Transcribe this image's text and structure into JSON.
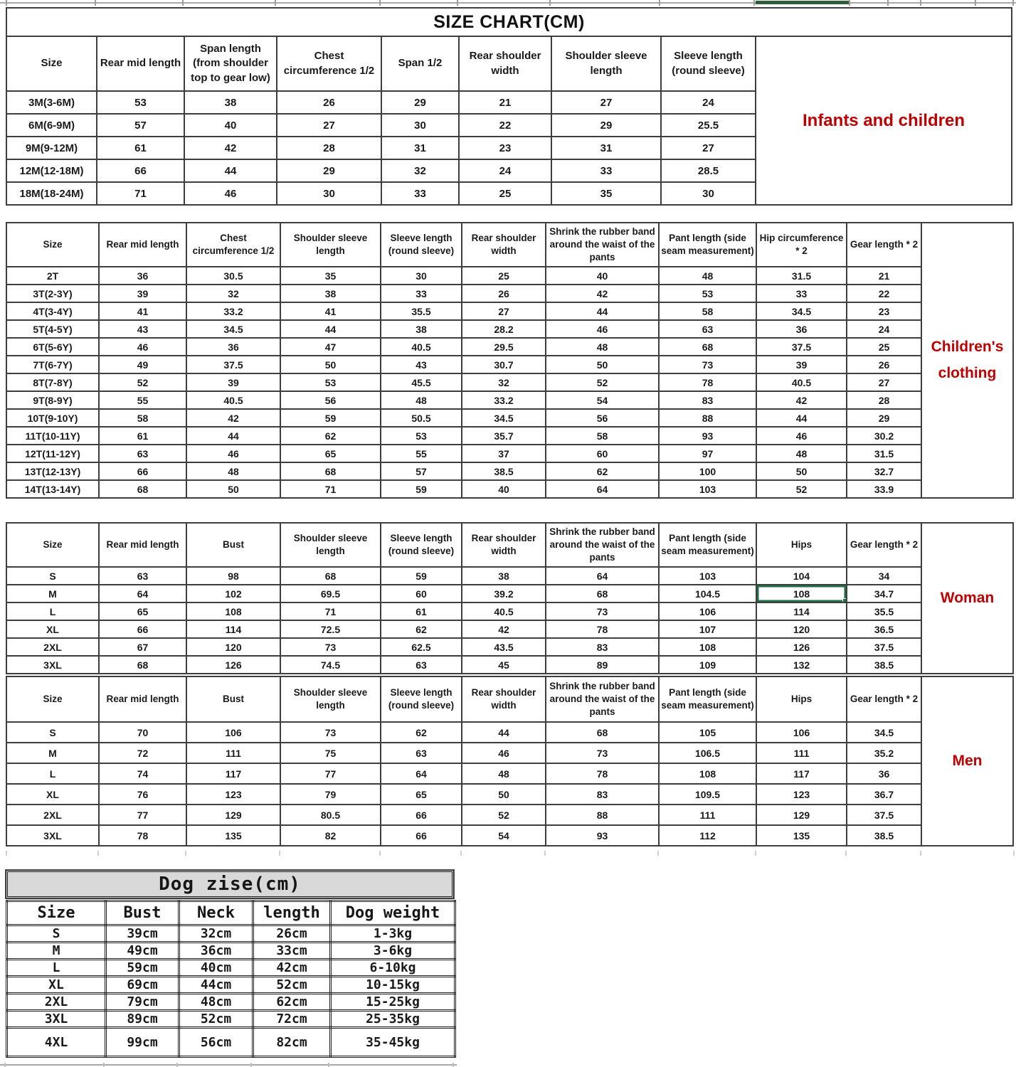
{
  "sheet_title": "SIZE CHART(CM)",
  "colors": {
    "red_label": "#c00000",
    "blue_row": "#1f6cb5",
    "navy_row": "#1f3864",
    "red_row": "#c00000",
    "selection_green": "#1e7145",
    "strip_green": "#2d5e38",
    "dog_header_bg": "#d9d9d9"
  },
  "tables": {
    "infants": {
      "side_label": "Infants and children",
      "headers": [
        "Size",
        "Rear mid length",
        "Span length (from shoulder top to gear low)",
        "Chest circumference 1/2",
        "Span 1/2",
        "Rear shoulder width",
        "Shoulder sleeve length",
        "Sleeve length (round sleeve)"
      ],
      "rows": [
        {
          "size": "3M(3-6M)",
          "values": [
            "53",
            "38",
            "26",
            "29",
            "21",
            "27",
            "24"
          ],
          "color": "black"
        },
        {
          "size": "6M(6-9M)",
          "values": [
            "57",
            "40",
            "27",
            "30",
            "22",
            "29",
            "25.5"
          ],
          "color": "black"
        },
        {
          "size": "9M(9-12M)",
          "values": [
            "61",
            "42",
            "28",
            "31",
            "23",
            "31",
            "27"
          ],
          "color": "black"
        },
        {
          "size": "12M(12-18M)",
          "values": [
            "66",
            "44",
            "29",
            "32",
            "24",
            "33",
            "28.5"
          ],
          "color": "black"
        },
        {
          "size": "18M(18-24M)",
          "values": [
            "71",
            "46",
            "30",
            "33",
            "25",
            "35",
            "30"
          ],
          "color": "black"
        }
      ]
    },
    "children": {
      "side_label_line1": "Children's",
      "side_label_line2": "clothing",
      "headers": [
        "Size",
        "Rear mid length",
        "Chest circumference 1/2",
        "Shoulder sleeve length",
        "Sleeve length (round sleeve)",
        "Rear shoulder width",
        "Shrink the rubber band around the waist of the pants",
        "Pant length (side seam measurement)",
        "Hip circumference * 2",
        "Gear length * 2"
      ],
      "dark_value_cols": [
        4,
        7
      ],
      "rows": [
        {
          "size": "2T",
          "values": [
            "36",
            "30.5",
            "35",
            "30",
            "25",
            "40",
            "48",
            "31.5",
            "21"
          ],
          "color": "black"
        },
        {
          "size": "3T(2-3Y)",
          "values": [
            "39",
            "32",
            "38",
            "33",
            "26",
            "42",
            "53",
            "33",
            "22"
          ],
          "color": "blue"
        },
        {
          "size": "4T(3-4Y)",
          "values": [
            "41",
            "33.2",
            "41",
            "35.5",
            "27",
            "44",
            "58",
            "34.5",
            "23"
          ],
          "color": "blue"
        },
        {
          "size": "5T(4-5Y)",
          "values": [
            "43",
            "34.5",
            "44",
            "38",
            "28.2",
            "46",
            "63",
            "36",
            "24"
          ],
          "color": "blue"
        },
        {
          "size": "6T(5-6Y)",
          "values": [
            "46",
            "36",
            "47",
            "40.5",
            "29.5",
            "48",
            "68",
            "37.5",
            "25"
          ],
          "color": "blue"
        },
        {
          "size": "7T(6-7Y)",
          "values": [
            "49",
            "37.5",
            "50",
            "43",
            "30.7",
            "50",
            "73",
            "39",
            "26"
          ],
          "color": "blue"
        },
        {
          "size": "8T(7-8Y)",
          "values": [
            "52",
            "39",
            "53",
            "45.5",
            "32",
            "52",
            "78",
            "40.5",
            "27"
          ],
          "color": "navy"
        },
        {
          "size": "9T(8-9Y)",
          "values": [
            "55",
            "40.5",
            "56",
            "48",
            "33.2",
            "54",
            "83",
            "42",
            "28"
          ],
          "color": "navy"
        },
        {
          "size": "10T(9-10Y)",
          "values": [
            "58",
            "42",
            "59",
            "50.5",
            "34.5",
            "56",
            "88",
            "44",
            "29"
          ],
          "color": "navy"
        },
        {
          "size": "11T(10-11Y)",
          "values": [
            "61",
            "44",
            "62",
            "53",
            "35.7",
            "58",
            "93",
            "46",
            "30.2"
          ],
          "color": "navy"
        },
        {
          "size": "12T(11-12Y)",
          "values": [
            "63",
            "46",
            "65",
            "55",
            "37",
            "60",
            "97",
            "48",
            "31.5"
          ],
          "color": "red"
        },
        {
          "size": "13T(12-13Y)",
          "values": [
            "66",
            "48",
            "68",
            "57",
            "38.5",
            "62",
            "100",
            "50",
            "32.7"
          ],
          "color": "red"
        },
        {
          "size": "14T(13-14Y)",
          "values": [
            "68",
            "50",
            "71",
            "59",
            "40",
            "64",
            "103",
            "52",
            "33.9"
          ],
          "color": "red"
        }
      ]
    },
    "woman": {
      "side_label": "Woman",
      "headers": [
        "Size",
        "Rear mid length",
        "Bust",
        "Shoulder sleeve length",
        "Sleeve length (round sleeve)",
        "Rear shoulder width",
        "Shrink the rubber band around the waist of the pants",
        "Pant length (side seam measurement)",
        "Hips",
        "Gear length * 2"
      ],
      "selected": {
        "row_index": 1,
        "value_index": 7
      },
      "rows": [
        {
          "size": "S",
          "values": [
            "63",
            "98",
            "68",
            "59",
            "38",
            "64",
            "103",
            "104",
            "34"
          ],
          "color": "black"
        },
        {
          "size": "M",
          "values": [
            "64",
            "102",
            "69.5",
            "60",
            "39.2",
            "68",
            "104.5",
            "108",
            "34.7"
          ],
          "color": "black"
        },
        {
          "size": "L",
          "values": [
            "65",
            "108",
            "71",
            "61",
            "40.5",
            "73",
            "106",
            "114",
            "35.5"
          ],
          "color": "black"
        },
        {
          "size": "XL",
          "values": [
            "66",
            "114",
            "72.5",
            "62",
            "42",
            "78",
            "107",
            "120",
            "36.5"
          ],
          "color": "black"
        },
        {
          "size": "2XL",
          "values": [
            "67",
            "120",
            "73",
            "62.5",
            "43.5",
            "83",
            "108",
            "126",
            "37.5"
          ],
          "color": "black"
        },
        {
          "size": "3XL",
          "values": [
            "68",
            "126",
            "74.5",
            "63",
            "45",
            "89",
            "109",
            "132",
            "38.5"
          ],
          "color": "black"
        }
      ]
    },
    "men": {
      "side_label": "Men",
      "headers": [
        "Size",
        "Rear mid length",
        "Bust",
        "Shoulder sleeve length",
        "Sleeve length (round sleeve)",
        "Rear shoulder width",
        "Shrink the rubber band around the waist of the pants",
        "Pant length (side seam measurement)",
        "Hips",
        "Gear length * 2"
      ],
      "rows": [
        {
          "size": "S",
          "values": [
            "70",
            "106",
            "73",
            "62",
            "44",
            "68",
            "105",
            "106",
            "34.5"
          ],
          "color": "black"
        },
        {
          "size": "M",
          "values": [
            "72",
            "111",
            "75",
            "63",
            "46",
            "73",
            "106.5",
            "111",
            "35.2"
          ],
          "color": "black"
        },
        {
          "size": "L",
          "values": [
            "74",
            "117",
            "77",
            "64",
            "48",
            "78",
            "108",
            "117",
            "36"
          ],
          "color": "black"
        },
        {
          "size": "XL",
          "values": [
            "76",
            "123",
            "79",
            "65",
            "50",
            "83",
            "109.5",
            "123",
            "36.7"
          ],
          "color": "black"
        },
        {
          "size": "2XL",
          "values": [
            "77",
            "129",
            "80.5",
            "66",
            "52",
            "88",
            "111",
            "129",
            "37.5"
          ],
          "color": "black"
        },
        {
          "size": "3XL",
          "values": [
            "78",
            "135",
            "82",
            "66",
            "54",
            "93",
            "112",
            "135",
            "38.5"
          ],
          "color": "black"
        }
      ]
    },
    "dog": {
      "title": "Dog zise(cm)",
      "headers": [
        "Size",
        "Bust",
        "Neck",
        "length",
        "Dog weight"
      ],
      "rows": [
        {
          "size": "S",
          "values": [
            "39cm",
            "32cm",
            "26cm",
            "1-3kg"
          ],
          "color": "black"
        },
        {
          "size": "M",
          "values": [
            "49cm",
            "36cm",
            "33cm",
            "3-6kg"
          ],
          "color": "black"
        },
        {
          "size": "L",
          "values": [
            "59cm",
            "40cm",
            "42cm",
            "6-10kg"
          ],
          "color": "black"
        },
        {
          "size": "XL",
          "values": [
            "69cm",
            "44cm",
            "52cm",
            "10-15kg"
          ],
          "color": "black"
        },
        {
          "size": "2XL",
          "values": [
            "79cm",
            "48cm",
            "62cm",
            "15-25kg"
          ],
          "color": "black"
        },
        {
          "size": "3XL",
          "values": [
            "89cm",
            "52cm",
            "72cm",
            "25-35kg"
          ],
          "color": "black"
        },
        {
          "size": "4XL",
          "values": [
            "99cm",
            "56cm",
            "82cm",
            "35-45kg"
          ],
          "color": "black"
        }
      ]
    }
  }
}
